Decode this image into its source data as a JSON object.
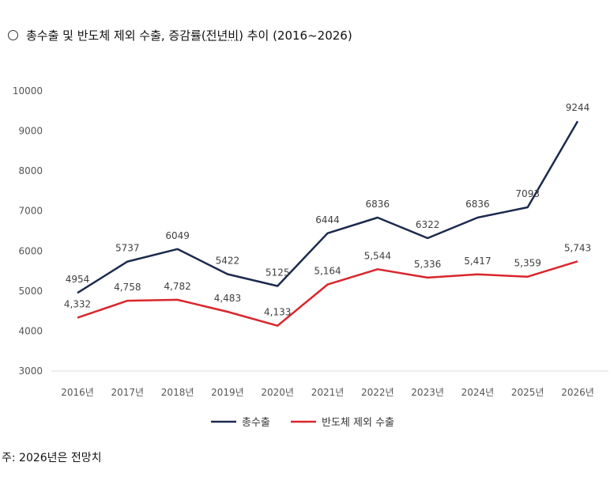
{
  "header": {
    "bullet_icon": "circle-icon",
    "title_prefix": "총수출 및 반도체 제외 수출, 증감률(",
    "title_underlined": "전년비",
    "title_suffix": ") 추이 (2016~2026)"
  },
  "chart_data": {
    "type": "line",
    "title": "총수출 및 반도체 제외 수출, 증감률(전년비) 추이 (2016~2026)",
    "categories": [
      "2016년",
      "2017년",
      "2018년",
      "2019년",
      "2020년",
      "2021년",
      "2022년",
      "2023년",
      "2024년",
      "2025년",
      "2026년"
    ],
    "ylim": [
      3000,
      10000
    ],
    "yticks": [
      "10000",
      "9000",
      "8000",
      "7000",
      "6000",
      "5000",
      "4000",
      "3000"
    ],
    "grid": false,
    "legend_position": "bottom",
    "series": [
      {
        "name": "총수출",
        "color": "#1b2a4e",
        "values": [
          4954,
          5737,
          6049,
          5422,
          5125,
          6444,
          6836,
          6322,
          6836,
          7093,
          9244
        ],
        "labels": [
          "4954",
          "5737",
          "6049",
          "5422",
          "5125",
          "6444",
          "6836",
          "6322",
          "6836",
          "7093",
          "9244"
        ]
      },
      {
        "name": "반도체 제외 수출",
        "color": "#d9262c",
        "values": [
          4332,
          4758,
          4782,
          4483,
          4133,
          5164,
          5544,
          5336,
          5417,
          5359,
          5743
        ],
        "labels": [
          "4,332",
          "4,758",
          "4,782",
          "4,483",
          "4,133",
          "5,164",
          "5,544",
          "5,336",
          "5,417",
          "5,359",
          "5,743"
        ]
      }
    ]
  },
  "footnote": "주: 2026년은 전망치"
}
